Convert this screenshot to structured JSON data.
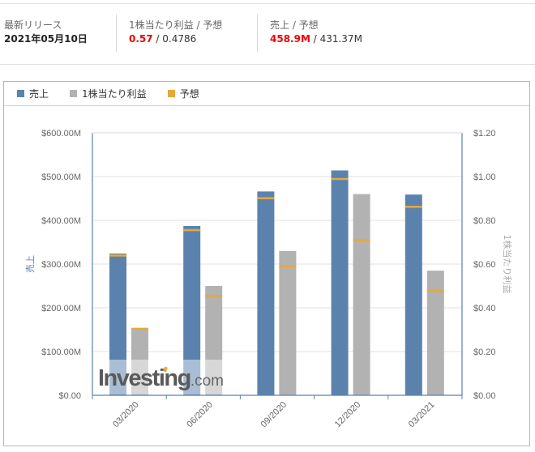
{
  "summary": {
    "latest_release": {
      "label": "最新リリース",
      "value": "2021年05月10日"
    },
    "eps": {
      "label": "1株当たり利益 / 予想",
      "actual": "0.57",
      "separator": " / ",
      "forecast": "0.4786"
    },
    "revenue": {
      "label": "売上 / 予想",
      "actual": "458.9M",
      "separator": " / ",
      "forecast": "431.37M"
    }
  },
  "legend": [
    {
      "label": "売上",
      "color": "#5b82ad"
    },
    {
      "label": "1株当たり利益",
      "color": "#b2b2b2"
    },
    {
      "label": "予想",
      "color": "#e8a838"
    }
  ],
  "watermark": {
    "brand": "Investing",
    "suffix": ".com"
  },
  "chart_data": {
    "type": "bar",
    "title": "",
    "categories": [
      "03/2020",
      "06/2020",
      "09/2020",
      "12/2020",
      "03/2021"
    ],
    "series": [
      {
        "name": "売上",
        "axis": "left",
        "unit": "USD millions",
        "color": "#5b82ad",
        "values": [
          324,
          387,
          466,
          514,
          458.9
        ]
      },
      {
        "name": "売上 予想",
        "axis": "left",
        "unit": "USD millions",
        "color": "#e8a838",
        "values": [
          320,
          378,
          451,
          495,
          431.37
        ],
        "marker": "line"
      },
      {
        "name": "1株当たり利益",
        "axis": "right",
        "unit": "USD",
        "color": "#b2b2b2",
        "values": [
          0.3,
          0.5,
          0.66,
          0.92,
          0.57
        ]
      },
      {
        "name": "1株当たり利益 予想",
        "axis": "right",
        "unit": "USD",
        "color": "#e8a838",
        "values": [
          0.305,
          0.455,
          0.59,
          0.71,
          0.4786
        ],
        "marker": "line"
      }
    ],
    "ylabel": "売上",
    "ylabel_right": "1株当たり利益",
    "ylim": [
      0,
      600
    ],
    "ylim_right": [
      0,
      1.2
    ],
    "yticks": [
      "$0.00",
      "$100.00M",
      "$200.00M",
      "$300.00M",
      "$400.00M",
      "$500.00M",
      "$600.00M"
    ],
    "yticks_right": [
      "$0.00",
      "$0.20",
      "$0.40",
      "$0.60",
      "$0.80",
      "$1.00",
      "$1.20"
    ],
    "grid": true,
    "legend_position": "top-left"
  }
}
